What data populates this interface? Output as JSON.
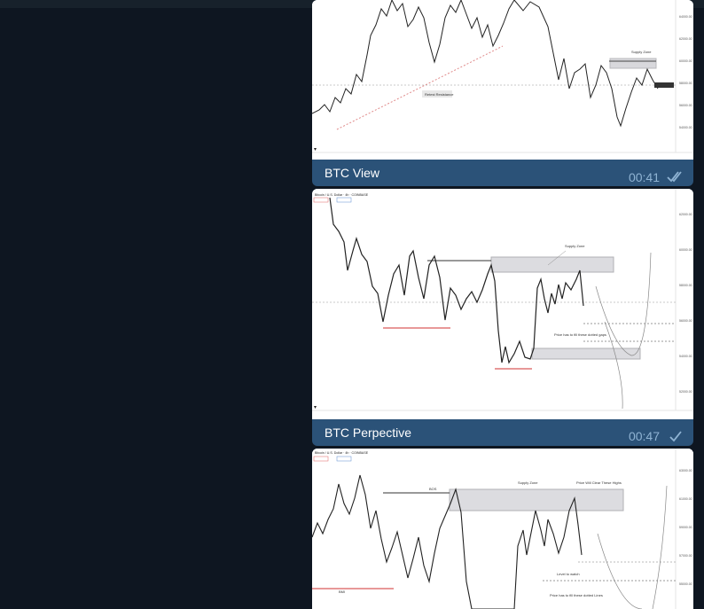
{
  "messages": [
    {
      "caption": "BTC View",
      "time": "00:41",
      "status": "double-check-icon",
      "labels": {
        "supply": "Supply Zone",
        "retest": "Retest Resistance"
      }
    },
    {
      "caption": "BTC Perpective",
      "time": "00:47",
      "status": "check-icon",
      "labels": {
        "symbol": "Bitcoin / U.S. Dollar · 4h · COINBASE",
        "supply": "Supply Zone",
        "note": "Price has to fill these dotted gaps"
      }
    },
    {
      "labels": {
        "symbol": "Bitcoin / U.S. Dollar · 4h · COINBASE",
        "supply": "Supply Zone",
        "highs": "Price Will Clear These Highs",
        "bos": "BOS",
        "level": "Level to watch",
        "note": "Price has to fill these dotted Lines"
      }
    }
  ],
  "colors": {
    "background": "#0e1621",
    "bubble": "#2b5278",
    "checks": "#8fb3d3"
  }
}
